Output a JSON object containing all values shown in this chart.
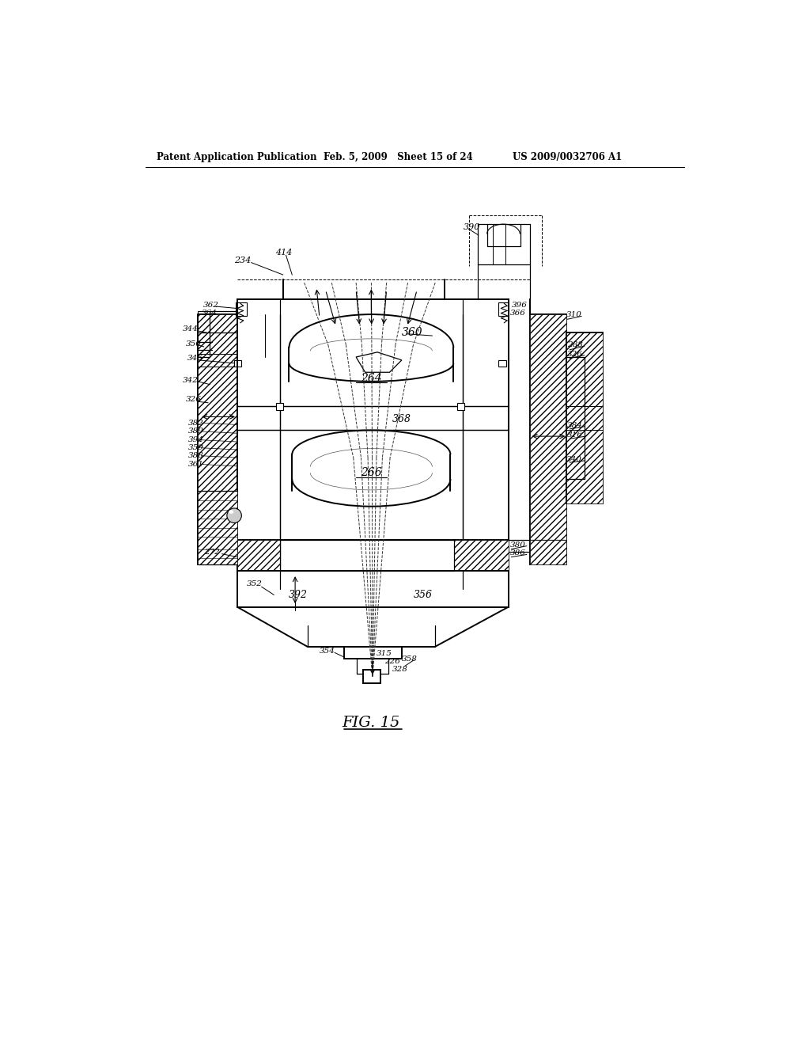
{
  "background_color": "#ffffff",
  "header_left": "Patent Application Publication",
  "header_mid": "Feb. 5, 2009   Sheet 15 of 24",
  "header_right": "US 2009/0032706 A1",
  "figure_label": "FIG. 15",
  "fig_width": 10.24,
  "fig_height": 13.2,
  "dpi": 100
}
